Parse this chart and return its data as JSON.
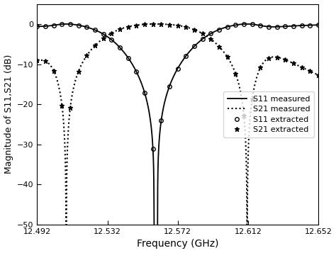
{
  "freq_start": 12.492,
  "freq_end": 12.652,
  "ylim": [
    -50,
    5
  ],
  "yticks": [
    -50,
    -40,
    -30,
    -20,
    -10,
    0
  ],
  "xticks": [
    12.492,
    12.532,
    12.572,
    12.612,
    12.652
  ],
  "xlabel": "Frequency (GHz)",
  "ylabel": "Magnitude of S11,S21 (dB)",
  "legend_entries": [
    "S11 measured",
    "S21 measured",
    "S11 extracted",
    "S21 extracted"
  ],
  "tz1": 12.5085,
  "tz2": 12.6115,
  "f0": 12.5605,
  "BW": 0.103,
  "background_color": "#ffffff",
  "line_color": "#000000",
  "n_pts": 5000,
  "n_extract": 35
}
